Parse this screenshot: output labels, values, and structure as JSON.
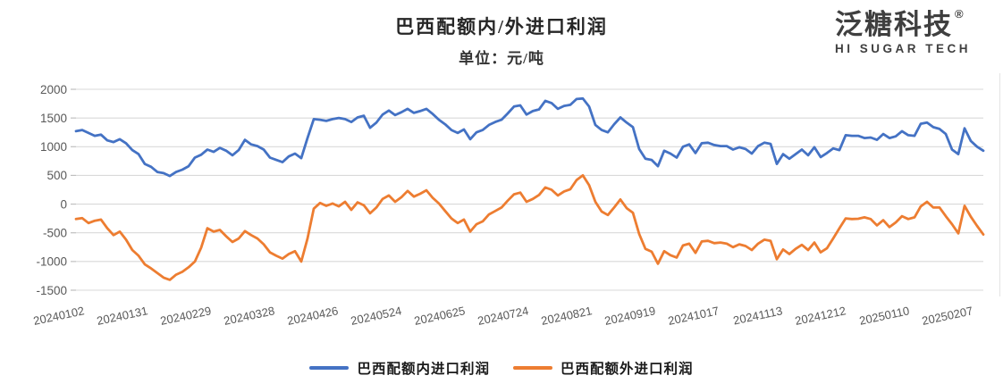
{
  "header": {
    "title": "巴西配额内/外进口利润",
    "subtitle": "单位：元/吨"
  },
  "logo": {
    "cn": "泛糖科技",
    "reg": "®",
    "en": "HI SUGAR TECH"
  },
  "colors": {
    "in_quota_line": "#4472C4",
    "out_quota_line": "#ED7D31",
    "gridline": "#D9D9D9",
    "tick_text": "#595959"
  },
  "chart_data": {
    "type": "line",
    "title": "巴西配额内/外进口利润",
    "unit": "元/吨",
    "xlabel": "",
    "ylabel": "元/吨",
    "ylim": [
      -1500,
      2000
    ],
    "grid": "horizontal",
    "legend_position": "bottom",
    "y_ticks": [
      2000,
      1500,
      1000,
      500,
      0,
      -500,
      -1000,
      -1500
    ],
    "x_tick_labels": [
      "20240102",
      "20240131",
      "20240229",
      "20240328",
      "20240426",
      "20240524",
      "20240625",
      "20240724",
      "20240821",
      "20240919",
      "20241017",
      "20241113",
      "20241212",
      "20250110",
      "20250207"
    ],
    "series": [
      {
        "name": "巴西配额内进口利润",
        "color": "#4472C4",
        "values": [
          1270,
          1290,
          1240,
          1190,
          1210,
          1110,
          1080,
          1130,
          1060,
          940,
          870,
          700,
          650,
          560,
          540,
          490,
          560,
          600,
          660,
          810,
          860,
          950,
          910,
          980,
          930,
          850,
          940,
          1120,
          1040,
          1010,
          950,
          810,
          770,
          730,
          830,
          880,
          800,
          1150,
          1480,
          1470,
          1450,
          1480,
          1500,
          1480,
          1430,
          1510,
          1540,
          1330,
          1420,
          1560,
          1630,
          1550,
          1600,
          1660,
          1590,
          1620,
          1660,
          1570,
          1470,
          1390,
          1290,
          1240,
          1300,
          1130,
          1250,
          1290,
          1380,
          1430,
          1470,
          1580,
          1700,
          1720,
          1560,
          1620,
          1650,
          1800,
          1760,
          1660,
          1710,
          1730,
          1830,
          1840,
          1700,
          1380,
          1290,
          1250,
          1390,
          1510,
          1420,
          1340,
          960,
          790,
          770,
          660,
          930,
          880,
          810,
          1000,
          1040,
          890,
          1060,
          1070,
          1030,
          1010,
          1010,
          950,
          990,
          960,
          880,
          1010,
          1070,
          1050,
          700,
          870,
          790,
          870,
          950,
          850,
          990,
          820,
          890,
          970,
          940,
          1200,
          1190,
          1190,
          1150,
          1160,
          1120,
          1220,
          1150,
          1180,
          1270,
          1200,
          1190,
          1400,
          1420,
          1340,
          1310,
          1220,
          950,
          870,
          1320,
          1100,
          1000,
          930
        ]
      },
      {
        "name": "巴西配额外进口利润",
        "color": "#ED7D31",
        "values": [
          -260,
          -245,
          -330,
          -290,
          -270,
          -420,
          -540,
          -480,
          -620,
          -800,
          -900,
          -1050,
          -1120,
          -1200,
          -1280,
          -1320,
          -1230,
          -1180,
          -1100,
          -1000,
          -760,
          -420,
          -480,
          -450,
          -560,
          -660,
          -600,
          -470,
          -540,
          -600,
          -700,
          -840,
          -900,
          -950,
          -870,
          -820,
          -1000,
          -600,
          -80,
          20,
          -30,
          10,
          -40,
          40,
          -100,
          30,
          -20,
          -160,
          -60,
          90,
          150,
          40,
          120,
          230,
          130,
          180,
          240,
          110,
          10,
          -120,
          -250,
          -330,
          -270,
          -480,
          -350,
          -300,
          -180,
          -120,
          -60,
          60,
          170,
          200,
          40,
          90,
          160,
          290,
          250,
          150,
          220,
          260,
          420,
          500,
          330,
          40,
          -130,
          -190,
          -60,
          80,
          -70,
          -150,
          -520,
          -780,
          -830,
          -1040,
          -820,
          -890,
          -930,
          -720,
          -690,
          -850,
          -650,
          -640,
          -680,
          -670,
          -690,
          -750,
          -700,
          -730,
          -800,
          -690,
          -620,
          -640,
          -960,
          -790,
          -870,
          -780,
          -710,
          -800,
          -670,
          -840,
          -770,
          -600,
          -420,
          -250,
          -260,
          -255,
          -230,
          -260,
          -370,
          -280,
          -400,
          -320,
          -210,
          -260,
          -230,
          -40,
          40,
          -60,
          -60,
          -210,
          -350,
          -510,
          -30,
          -220,
          -380,
          -530
        ]
      }
    ]
  }
}
